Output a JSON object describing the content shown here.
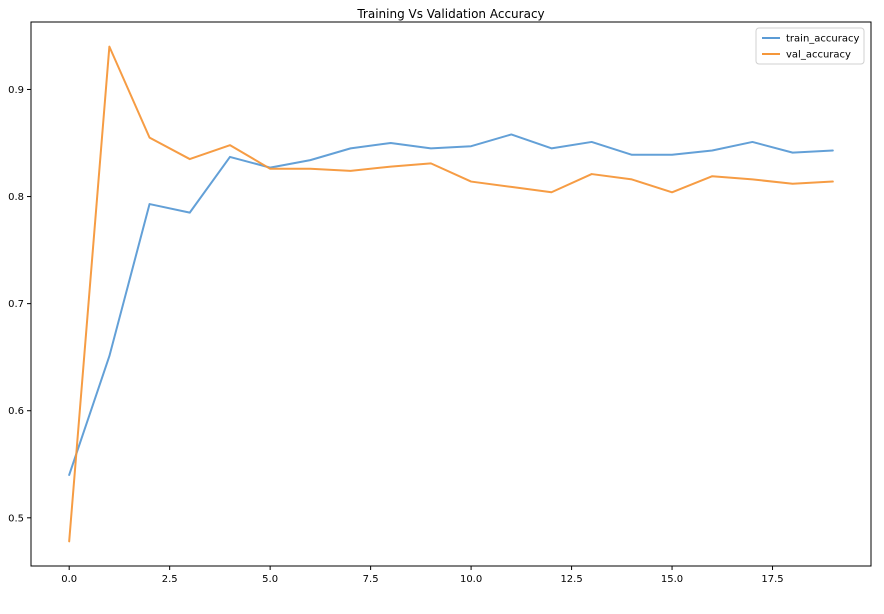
{
  "chart_data": {
    "type": "line",
    "title": "Training Vs Validation Accuracy",
    "xlabel": "",
    "ylabel": "",
    "xlim": [
      -0.95,
      19.95
    ],
    "ylim": [
      0.455,
      0.963
    ],
    "xticks": [
      0.0,
      2.5,
      5.0,
      7.5,
      10.0,
      12.5,
      15.0,
      17.5
    ],
    "xtick_labels": [
      "0.0",
      "2.5",
      "5.0",
      "7.5",
      "10.0",
      "12.5",
      "15.0",
      "17.5"
    ],
    "yticks": [
      0.5,
      0.6,
      0.7,
      0.8,
      0.9
    ],
    "ytick_labels": [
      "0.5",
      "0.6",
      "0.7",
      "0.8",
      "0.9"
    ],
    "grid": false,
    "legend_position": "top-right",
    "x": [
      0,
      1,
      2,
      3,
      4,
      5,
      6,
      7,
      8,
      9,
      10,
      11,
      12,
      13,
      14,
      15,
      16,
      17,
      18,
      19
    ],
    "series": [
      {
        "name": "train_accuracy",
        "color": "#5b9bd5",
        "values": [
          0.54,
          0.651,
          0.793,
          0.785,
          0.837,
          0.827,
          0.834,
          0.845,
          0.85,
          0.845,
          0.847,
          0.858,
          0.845,
          0.851,
          0.839,
          0.839,
          0.843,
          0.851,
          0.841,
          0.843
        ]
      },
      {
        "name": "val_accuracy",
        "color": "#f5973a",
        "values": [
          0.478,
          0.94,
          0.855,
          0.835,
          0.848,
          0.826,
          0.826,
          0.824,
          0.828,
          0.831,
          0.814,
          0.809,
          0.804,
          0.821,
          0.816,
          0.804,
          0.819,
          0.816,
          0.812,
          0.814
        ]
      }
    ]
  }
}
